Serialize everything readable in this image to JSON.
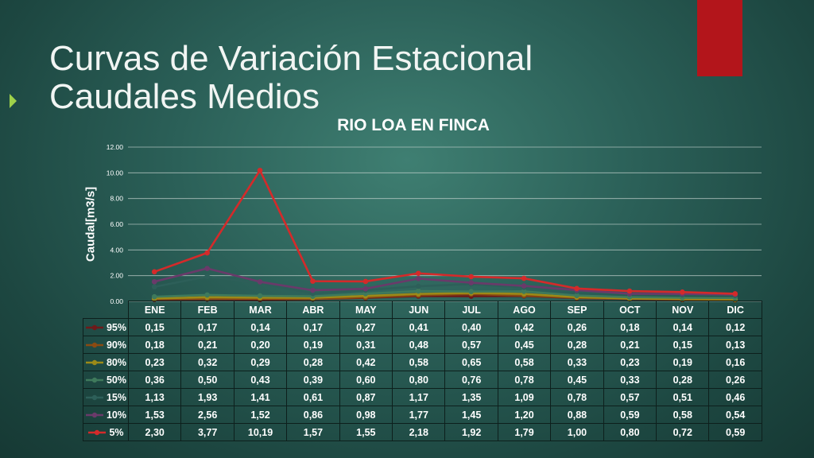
{
  "slide_title": {
    "line1": "Curvas de Variación Estacional",
    "line2": "Caudales Medios"
  },
  "chart_data": {
    "type": "line",
    "title": "RIO LOA EN FINCA",
    "xlabel": "",
    "ylabel": "Caudal[m3/s]",
    "ylim": [
      0,
      12
    ],
    "yticks": [
      "0.00",
      "2.00",
      "4.00",
      "6.00",
      "8.00",
      "10.00",
      "12.00"
    ],
    "grid": true,
    "legend": "data-table",
    "categories": [
      "ENE",
      "FEB",
      "MAR",
      "ABR",
      "MAY",
      "JUN",
      "JUL",
      "AGO",
      "SEP",
      "OCT",
      "NOV",
      "DIC"
    ],
    "series": [
      {
        "name": "95%",
        "color": "#6e1a1a",
        "values": [
          0.15,
          0.17,
          0.14,
          0.17,
          0.27,
          0.41,
          0.4,
          0.42,
          0.26,
          0.18,
          0.14,
          0.12
        ],
        "labels": [
          "0,15",
          "0,17",
          "0,14",
          "0,17",
          "0,27",
          "0,41",
          "0,40",
          "0,42",
          "0,26",
          "0,18",
          "0,14",
          "0,12"
        ]
      },
      {
        "name": "90%",
        "color": "#8a4a12",
        "values": [
          0.18,
          0.21,
          0.2,
          0.19,
          0.31,
          0.48,
          0.57,
          0.45,
          0.28,
          0.21,
          0.15,
          0.13
        ],
        "labels": [
          "0,18",
          "0,21",
          "0,20",
          "0,19",
          "0,31",
          "0,48",
          "0,57",
          "0,45",
          "0,28",
          "0,21",
          "0,15",
          "0,13"
        ]
      },
      {
        "name": "80%",
        "color": "#9c8a18",
        "values": [
          0.23,
          0.32,
          0.29,
          0.28,
          0.42,
          0.58,
          0.65,
          0.58,
          0.33,
          0.23,
          0.19,
          0.16
        ],
        "labels": [
          "0,23",
          "0,32",
          "0,29",
          "0,28",
          "0,42",
          "0,58",
          "0,65",
          "0,58",
          "0,33",
          "0,23",
          "0,19",
          "0,16"
        ]
      },
      {
        "name": "50%",
        "color": "#3f7a5c",
        "values": [
          0.36,
          0.5,
          0.43,
          0.39,
          0.6,
          0.8,
          0.76,
          0.78,
          0.45,
          0.33,
          0.28,
          0.26
        ],
        "labels": [
          "0,36",
          "0,50",
          "0,43",
          "0,39",
          "0,60",
          "0,80",
          "0,76",
          "0,78",
          "0,45",
          "0,33",
          "0,28",
          "0,26"
        ]
      },
      {
        "name": "15%",
        "color": "#2d5f59",
        "values": [
          1.13,
          1.93,
          1.41,
          0.61,
          0.87,
          1.17,
          1.35,
          1.09,
          0.78,
          0.57,
          0.51,
          0.46
        ],
        "labels": [
          "1,13",
          "1,93",
          "1,41",
          "0,61",
          "0,87",
          "1,17",
          "1,35",
          "1,09",
          "0,78",
          "0,57",
          "0,51",
          "0,46"
        ]
      },
      {
        "name": "10%",
        "color": "#6a3a6a",
        "values": [
          1.53,
          2.56,
          1.52,
          0.86,
          0.98,
          1.77,
          1.45,
          1.2,
          0.88,
          0.59,
          0.58,
          0.54
        ],
        "labels": [
          "1,53",
          "2,56",
          "1,52",
          "0,86",
          "0,98",
          "1,77",
          "1,45",
          "1,20",
          "0,88",
          "0,59",
          "0,58",
          "0,54"
        ]
      },
      {
        "name": "5%",
        "color": "#d42a2a",
        "values": [
          2.3,
          3.77,
          10.19,
          1.57,
          1.55,
          2.18,
          1.92,
          1.79,
          1.0,
          0.8,
          0.72,
          0.59
        ],
        "labels": [
          "2,30",
          "3,77",
          "10,19",
          "1,57",
          "1,55",
          "2,18",
          "1,92",
          "1,79",
          "1,00",
          "0,80",
          "0,72",
          "0,59"
        ]
      }
    ]
  }
}
